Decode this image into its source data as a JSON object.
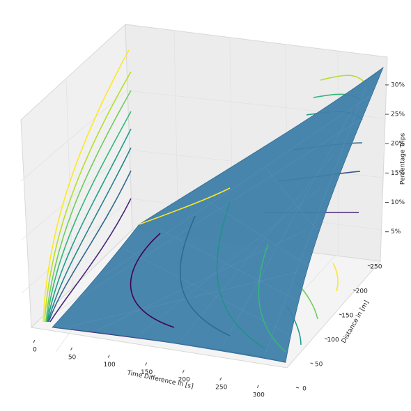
{
  "chart_data": {
    "type": "surface3d",
    "xlabel": "Time Difference in [s]",
    "ylabel": "Distance in [m]",
    "zlabel": "Percentage Trips",
    "xlim": [
      0,
      310
    ],
    "xticks": [
      0,
      50,
      100,
      150,
      200,
      250,
      300
    ],
    "ylim": [
      0,
      260
    ],
    "yticks": [
      0,
      50,
      100,
      150,
      200,
      250
    ],
    "zlim": [
      2,
      33
    ],
    "zticks": [
      {
        "value": 5,
        "label": "5%"
      },
      {
        "value": 10,
        "label": "10%"
      },
      {
        "value": 15,
        "label": "15%"
      },
      {
        "value": 20,
        "label": "20%"
      },
      {
        "value": 25,
        "label": "25%"
      },
      {
        "value": 30,
        "label": "30%"
      }
    ],
    "color": "#3f7fa9"
  }
}
